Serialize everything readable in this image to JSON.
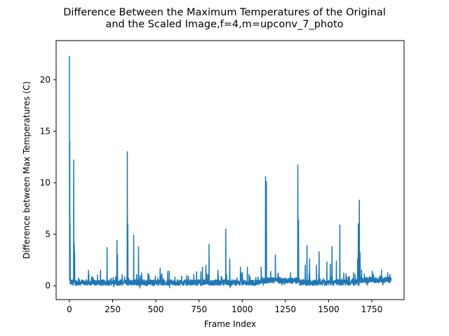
{
  "chart_data": {
    "type": "line",
    "title_lines": [
      "Difference Between the Maximum Temperatures of the Original",
      "and the Scaled Image,f=4,m=upconv_7_photo"
    ],
    "xlabel": "Frame Index",
    "ylabel": "Difference between Max Temperatures (C)",
    "xlim": [
      -77,
      1937
    ],
    "ylim": [
      -1.35,
      23.8
    ],
    "xticks": [
      0,
      250,
      500,
      750,
      1000,
      1250,
      1500,
      1750
    ],
    "yticks": [
      0,
      5,
      10,
      15,
      20
    ],
    "grid": false,
    "legend": "none",
    "n_points": 1863,
    "baseline": 0.3,
    "spikes": [
      {
        "x": 0,
        "y": 22.3
      },
      {
        "x": 2,
        "y": 14.0
      },
      {
        "x": 4,
        "y": 6.0
      },
      {
        "x": 25,
        "y": 12.2
      },
      {
        "x": 28,
        "y": 4.0
      },
      {
        "x": 30,
        "y": 3.2
      },
      {
        "x": 110,
        "y": 1.5
      },
      {
        "x": 180,
        "y": 1.5
      },
      {
        "x": 218,
        "y": 3.7
      },
      {
        "x": 275,
        "y": 4.4
      },
      {
        "x": 278,
        "y": 3.0
      },
      {
        "x": 335,
        "y": 13.0
      },
      {
        "x": 338,
        "y": 6.0
      },
      {
        "x": 372,
        "y": 4.9
      },
      {
        "x": 400,
        "y": 3.8
      },
      {
        "x": 455,
        "y": 1.2
      },
      {
        "x": 525,
        "y": 1.7
      },
      {
        "x": 578,
        "y": 1.4
      },
      {
        "x": 680,
        "y": 1.0
      },
      {
        "x": 720,
        "y": 1.1
      },
      {
        "x": 770,
        "y": 1.8
      },
      {
        "x": 790,
        "y": 2.0
      },
      {
        "x": 808,
        "y": 4.0
      },
      {
        "x": 860,
        "y": 1.5
      },
      {
        "x": 905,
        "y": 5.5
      },
      {
        "x": 928,
        "y": 2.6
      },
      {
        "x": 990,
        "y": 1.8
      },
      {
        "x": 1030,
        "y": 1.8
      },
      {
        "x": 1110,
        "y": 1.8
      },
      {
        "x": 1135,
        "y": 10.6
      },
      {
        "x": 1140,
        "y": 10.1
      },
      {
        "x": 1192,
        "y": 3.0
      },
      {
        "x": 1322,
        "y": 11.7
      },
      {
        "x": 1326,
        "y": 6.4
      },
      {
        "x": 1365,
        "y": 2.0
      },
      {
        "x": 1375,
        "y": 3.9
      },
      {
        "x": 1390,
        "y": 2.6
      },
      {
        "x": 1430,
        "y": 2.0
      },
      {
        "x": 1445,
        "y": 3.3
      },
      {
        "x": 1490,
        "y": 2.3
      },
      {
        "x": 1510,
        "y": 2.1
      },
      {
        "x": 1520,
        "y": 3.8
      },
      {
        "x": 1545,
        "y": 2.4
      },
      {
        "x": 1565,
        "y": 5.9
      },
      {
        "x": 1620,
        "y": 0.9
      },
      {
        "x": 1668,
        "y": 2.6
      },
      {
        "x": 1672,
        "y": 6.0
      },
      {
        "x": 1678,
        "y": 8.3
      },
      {
        "x": 1682,
        "y": 3.2
      },
      {
        "x": 1760,
        "y": 1.1
      },
      {
        "x": 1855,
        "y": 1.1
      }
    ],
    "color": "#1f77b4"
  }
}
